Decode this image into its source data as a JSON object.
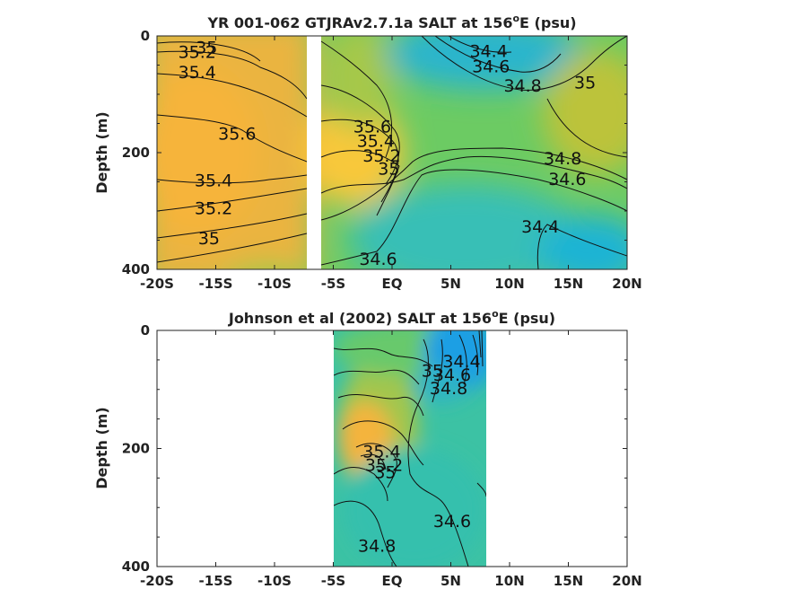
{
  "chart_data": [
    {
      "type": "heatmap",
      "title": {
        "main": "YR 001-062 GTJRAv2.7.1a SALT at 156",
        "superscript": "o",
        "tail": "E (psu)"
      },
      "ylabel": "Depth (m)",
      "xlim": [
        -20,
        20
      ],
      "ylim": [
        0,
        400
      ],
      "y_reversed": true,
      "xticks": [
        -20,
        -15,
        -10,
        -5,
        0,
        5,
        10,
        15,
        20
      ],
      "xtick_labels": [
        "-20S",
        "-15S",
        "-10S",
        "-5S",
        "EQ",
        "5N",
        "10N",
        "15N",
        "20N"
      ],
      "yticks": [
        0,
        200,
        400
      ],
      "ytick_labels": [
        "0",
        "200",
        "400"
      ],
      "data_gap_lat": [
        -7.2,
        -6.2
      ],
      "colorscale": {
        "min": 34.2,
        "max": 35.8,
        "colors": [
          "#1aa7e0",
          "#2ec5b0",
          "#7ccf5a",
          "#c9c535",
          "#f8ba3c",
          "#fcd629"
        ]
      },
      "contour_levels": [
        34.4,
        34.6,
        34.8,
        35,
        35.2,
        35.4,
        35.6
      ],
      "contour_labels": [
        {
          "text": "35",
          "lat": -16.7,
          "depth": 30
        },
        {
          "text": "35.2",
          "lat": -18.2,
          "depth": 38
        },
        {
          "text": "35.4",
          "lat": -18.2,
          "depth": 72
        },
        {
          "text": "35.6",
          "lat": -14.8,
          "depth": 178
        },
        {
          "text": "35.4",
          "lat": -16.8,
          "depth": 258
        },
        {
          "text": "35.2",
          "lat": -16.8,
          "depth": 305
        },
        {
          "text": "35",
          "lat": -16.5,
          "depth": 357
        },
        {
          "text": "35.6",
          "lat": -3.3,
          "depth": 165
        },
        {
          "text": "35.4",
          "lat": -3.0,
          "depth": 190
        },
        {
          "text": "35.2",
          "lat": -2.5,
          "depth": 215
        },
        {
          "text": "35",
          "lat": -1.2,
          "depth": 238
        },
        {
          "text": "34.4",
          "lat": 6.6,
          "depth": 36
        },
        {
          "text": "34.6",
          "lat": 6.8,
          "depth": 62
        },
        {
          "text": "34.8",
          "lat": 9.5,
          "depth": 95
        },
        {
          "text": "35",
          "lat": 15.5,
          "depth": 90
        },
        {
          "text": "34.8",
          "lat": 12.9,
          "depth": 220
        },
        {
          "text": "34.6",
          "lat": 13.3,
          "depth": 255
        },
        {
          "text": "34.4",
          "lat": 11.0,
          "depth": 337
        },
        {
          "text": "34.6",
          "lat": -2.8,
          "depth": 392
        }
      ]
    },
    {
      "type": "heatmap",
      "title": {
        "main": "Johnson et al (2002) SALT at 156",
        "superscript": "o",
        "tail": "E (psu)"
      },
      "ylabel": "Depth (m)",
      "xlim": [
        -20,
        20
      ],
      "ylim": [
        0,
        400
      ],
      "y_reversed": true,
      "xticks": [
        -20,
        -15,
        -10,
        -5,
        0,
        5,
        10,
        15,
        20
      ],
      "xtick_labels": [
        "-20S",
        "-15S",
        "-10S",
        "-5S",
        "EQ",
        "5N",
        "10N",
        "15N",
        "20N"
      ],
      "yticks": [
        0,
        200,
        400
      ],
      "ytick_labels": [
        "0",
        "200",
        "400"
      ],
      "data_lat_range": [
        -5,
        8
      ],
      "colorscale": {
        "min": 34.2,
        "max": 35.8,
        "colors": [
          "#1aa7e0",
          "#2ec5b0",
          "#7ccf5a",
          "#c9c535",
          "#f8ba3c",
          "#fcd629"
        ]
      },
      "contour_levels": [
        34.4,
        34.6,
        34.8,
        35,
        35.2,
        35.4
      ],
      "contour_labels": [
        {
          "text": "34.4",
          "lat": 4.3,
          "depth": 62
        },
        {
          "text": "34.6",
          "lat": 3.5,
          "depth": 85
        },
        {
          "text": "34.8",
          "lat": 3.2,
          "depth": 108
        },
        {
          "text": "35",
          "lat": 2.5,
          "depth": 78
        },
        {
          "text": "35.4",
          "lat": -2.5,
          "depth": 215
        },
        {
          "text": "35.2",
          "lat": -2.3,
          "depth": 238
        },
        {
          "text": "35",
          "lat": -1.5,
          "depth": 250
        },
        {
          "text": "34.8",
          "lat": -2.9,
          "depth": 375
        },
        {
          "text": "34.6",
          "lat": 3.5,
          "depth": 333
        }
      ]
    }
  ]
}
